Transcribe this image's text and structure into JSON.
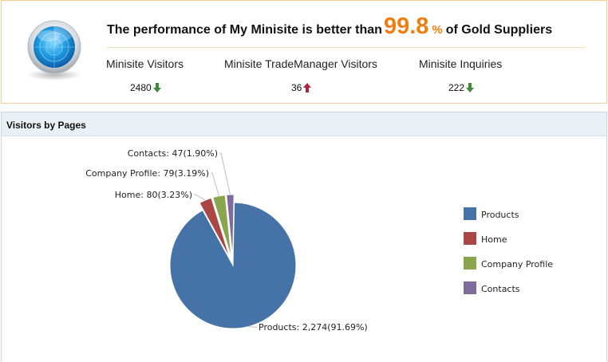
{
  "summary": {
    "headline_prefix": "The performance of My Minisite is better than",
    "headline_value": "99.8",
    "headline_unit": "%",
    "headline_suffix": "of Gold Suppliers",
    "metrics": [
      {
        "label": "Minisite Visitors",
        "value": "2480",
        "trend": "down",
        "trend_color": "#3f8a3a"
      },
      {
        "label": "Minisite TradeManager Visitors",
        "value": "36",
        "trend": "up",
        "trend_color": "#b0263a"
      },
      {
        "label": "Minisite Inquiries",
        "value": "222",
        "trend": "down",
        "trend_color": "#3f8a3a"
      }
    ],
    "icon": "radar-icon"
  },
  "chart_panel": {
    "title": "Visitors by Pages"
  },
  "chart_data": {
    "type": "pie",
    "title": "",
    "legend_position": "right",
    "slices": [
      {
        "label": "Products",
        "value": 2274,
        "percent": "91.69%",
        "display_value": "2,274",
        "color": "#4572a7"
      },
      {
        "label": "Home",
        "value": 80,
        "percent": "3.23%",
        "display_value": "80",
        "color": "#aa4643"
      },
      {
        "label": "Company Profile",
        "value": 79,
        "percent": "3.19%",
        "display_value": "79",
        "color": "#89a54e"
      },
      {
        "label": "Contacts",
        "value": 47,
        "percent": "1.90%",
        "display_value": "47",
        "color": "#80699b"
      }
    ]
  }
}
